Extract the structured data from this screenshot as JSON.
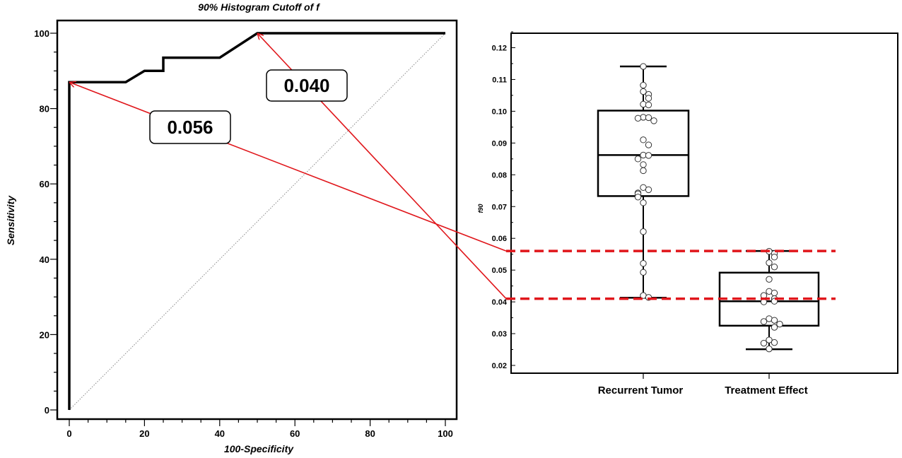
{
  "chart_data": [
    {
      "type": "line",
      "title": "90% Histogram Cutoff of f",
      "xlabel": "100-Specificity",
      "ylabel": "Sensitivity",
      "xlim": [
        0,
        100
      ],
      "ylim": [
        0,
        100
      ],
      "x_ticks": [
        "0",
        "20",
        "40",
        "60",
        "80",
        "100"
      ],
      "y_ticks": [
        "0",
        "20",
        "40",
        "60",
        "80",
        "100"
      ],
      "series": [
        {
          "x": [
            0,
            0,
            15,
            20,
            25,
            25,
            40,
            50,
            100
          ],
          "y": [
            0,
            87,
            87,
            90,
            90,
            93.5,
            93.5,
            100,
            100
          ]
        }
      ],
      "reference_line": {
        "x": [
          0,
          100
        ],
        "y": [
          0,
          100
        ],
        "style": "dotted"
      },
      "annotations": [
        {
          "label": "0.056",
          "points_to": {
            "x": 0,
            "y": 87
          }
        },
        {
          "label": "0.040",
          "points_to": {
            "x": 50,
            "y": 100
          }
        }
      ],
      "grid": false
    },
    {
      "type": "box",
      "ylabel": "f90",
      "ylim": [
        0.017,
        0.123
      ],
      "y_ticks": [
        "0.02",
        "0.03",
        "0.04",
        "0.05",
        "0.06",
        "0.07",
        "0.08",
        "0.09",
        "0.10",
        "0.11",
        "0.12"
      ],
      "categories": [
        "Recurrent Tumor",
        "Treatment Effect"
      ],
      "boxes": [
        {
          "whisker_low": 0.0413,
          "q1": 0.0733,
          "median": 0.0862,
          "q3": 0.1002,
          "whisker_high": 0.1141,
          "points": [
            0.1141,
            0.1082,
            0.1062,
            0.1053,
            0.1041,
            0.1022,
            0.102,
            0.0981,
            0.098,
            0.0978,
            0.097,
            0.091,
            0.0894,
            0.0862,
            0.0861,
            0.085,
            0.0832,
            0.0813,
            0.076,
            0.0753,
            0.0743,
            0.074,
            0.073,
            0.0712,
            0.0621,
            0.0521,
            0.0493,
            0.042,
            0.0414
          ]
        },
        {
          "whisker_low": 0.0251,
          "q1": 0.0325,
          "median": 0.0402,
          "q3": 0.0492,
          "whisker_high": 0.056,
          "points": [
            0.0559,
            0.0552,
            0.0541,
            0.0523,
            0.051,
            0.0471,
            0.0433,
            0.0428,
            0.042,
            0.041,
            0.0402,
            0.04,
            0.0347,
            0.0342,
            0.0338,
            0.033,
            0.032,
            0.028,
            0.0272,
            0.027,
            0.0252
          ]
        }
      ],
      "cutoffs": [
        0.056,
        0.041
      ]
    }
  ]
}
